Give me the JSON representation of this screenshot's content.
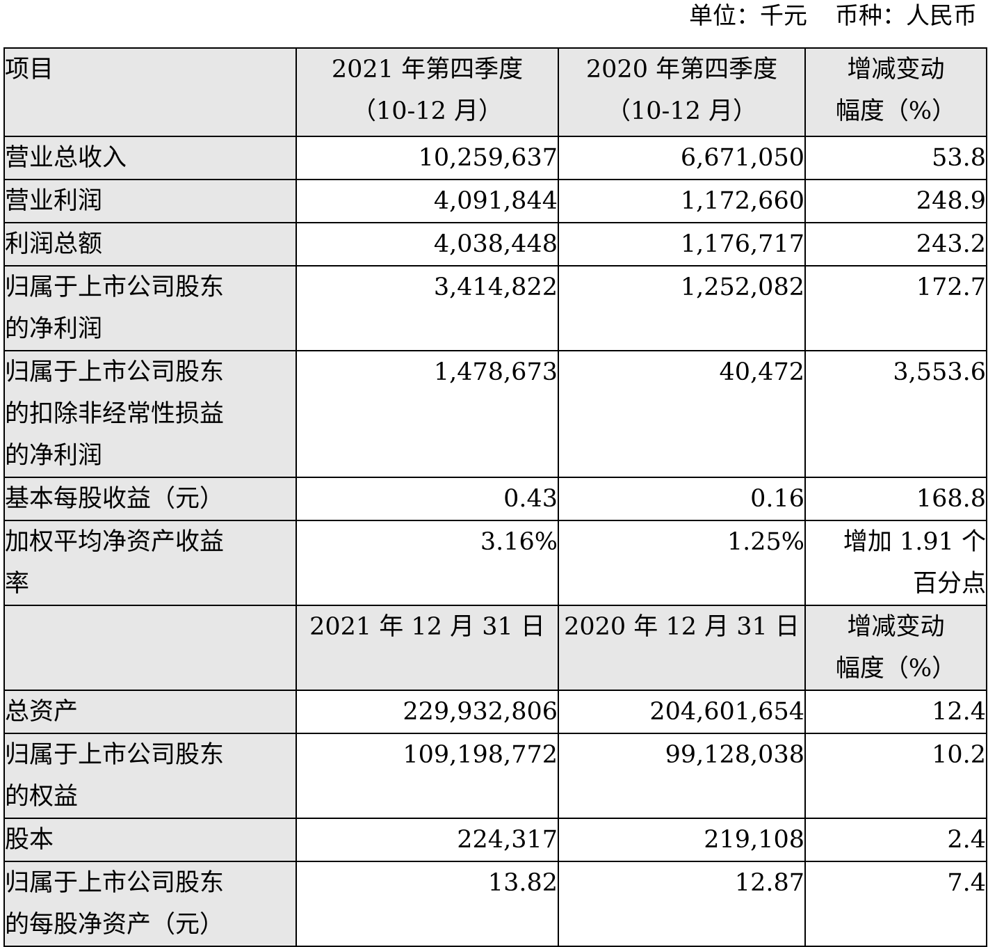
{
  "unit": {
    "unit_label": "单位：千元",
    "currency_label": "币种：人民币"
  },
  "header1": {
    "item": "项目",
    "col1_line1": "2021 年第四季度",
    "col1_line2": "（10-12 月）",
    "col2_line1": "2020 年第四季度",
    "col2_line2": "（10-12 月）",
    "col3_line1": "增减变动",
    "col3_line2": "幅度（%）"
  },
  "rows_q": [
    {
      "label": [
        "营业总收入"
      ],
      "v2021": "10,259,637",
      "v2020": "6,671,050",
      "chg": "53.8"
    },
    {
      "label": [
        "营业利润"
      ],
      "v2021": "4,091,844",
      "v2020": "1,172,660",
      "chg": "248.9"
    },
    {
      "label": [
        "利润总额"
      ],
      "v2021": "4,038,448",
      "v2020": "1,176,717",
      "chg": "243.2"
    },
    {
      "label": [
        "归属于上市公司股东",
        "的净利润"
      ],
      "v2021": "3,414,822",
      "v2020": "1,252,082",
      "chg": "172.7"
    },
    {
      "label": [
        "归属于上市公司股东",
        "的扣除非经常性损益",
        "的净利润"
      ],
      "v2021": "1,478,673",
      "v2020": "40,472",
      "chg": "3,553.6"
    },
    {
      "label": [
        "基本每股收益（元）"
      ],
      "v2021": "0.43",
      "v2020": "0.16",
      "chg": "168.8"
    }
  ],
  "row_roe": {
    "label": [
      "加权平均净资产收益",
      "率"
    ],
    "v2021": "3.16%",
    "v2020": "1.25%",
    "chg": [
      "增加 1.91 个",
      "百分点"
    ]
  },
  "header2": {
    "col1": "2021 年 12 月 31 日",
    "col2": "2020 年 12 月 31 日",
    "col3_line1": "增减变动",
    "col3_line2": "幅度（%）"
  },
  "rows_b": [
    {
      "label": [
        "总资产"
      ],
      "v2021": "229,932,806",
      "v2020": "204,601,654",
      "chg": "12.4"
    },
    {
      "label": [
        "归属于上市公司股东",
        "的权益"
      ],
      "v2021": "109,198,772",
      "v2020": "99,128,038",
      "chg": "10.2"
    },
    {
      "label": [
        "股本"
      ],
      "v2021": "224,317",
      "v2020": "219,108",
      "chg": "2.4"
    },
    {
      "label": [
        "归属于上市公司股东",
        "的每股净资产（元）"
      ],
      "v2021": "13.82",
      "v2020": "12.87",
      "chg": "7.4"
    }
  ]
}
